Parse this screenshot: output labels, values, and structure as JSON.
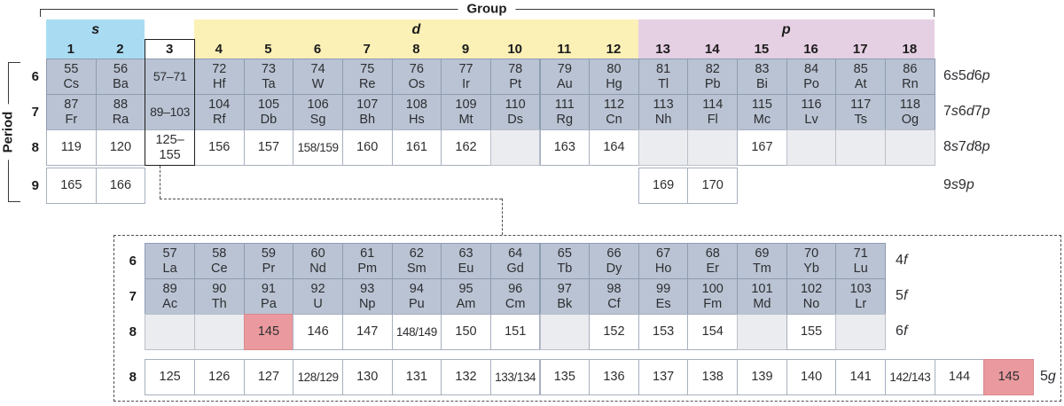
{
  "labels": {
    "group": "Group",
    "period": "Period"
  },
  "blocks": {
    "s": "s",
    "d": "d",
    "p": "p"
  },
  "group_numbers": [
    "1",
    "2",
    "3",
    "4",
    "5",
    "6",
    "7",
    "8",
    "9",
    "10",
    "11",
    "12",
    "13",
    "14",
    "15",
    "16",
    "17",
    "18"
  ],
  "colors": {
    "s_block": "#a9dcf3",
    "d_block": "#fbf0b6",
    "p_block": "#e5cfe3",
    "known_cell": "#b9c3d3",
    "predicted_cell": "#ffffff",
    "empty_cell": "#ebecef",
    "highlight_cell": "#ea9a9e"
  },
  "main_table": {
    "rows": [
      {
        "period": "6",
        "orbitals": "6s5d6p",
        "cells": [
          {
            "n": "55",
            "s": "Cs",
            "t": "known"
          },
          {
            "n": "56",
            "s": "Ba",
            "t": "known"
          },
          {
            "n": "57–71",
            "t": "range"
          },
          {
            "n": "72",
            "s": "Hf",
            "t": "known"
          },
          {
            "n": "73",
            "s": "Ta",
            "t": "known"
          },
          {
            "n": "74",
            "s": "W",
            "t": "known"
          },
          {
            "n": "75",
            "s": "Re",
            "t": "known"
          },
          {
            "n": "76",
            "s": "Os",
            "t": "known"
          },
          {
            "n": "77",
            "s": "Ir",
            "t": "known"
          },
          {
            "n": "78",
            "s": "Pt",
            "t": "known"
          },
          {
            "n": "79",
            "s": "Au",
            "t": "known"
          },
          {
            "n": "80",
            "s": "Hg",
            "t": "known"
          },
          {
            "n": "81",
            "s": "Tl",
            "t": "known"
          },
          {
            "n": "82",
            "s": "Pb",
            "t": "known"
          },
          {
            "n": "83",
            "s": "Bi",
            "t": "known"
          },
          {
            "n": "84",
            "s": "Po",
            "t": "known"
          },
          {
            "n": "85",
            "s": "At",
            "t": "known"
          },
          {
            "n": "86",
            "s": "Rn",
            "t": "known"
          }
        ]
      },
      {
        "period": "7",
        "orbitals": "7s6d7p",
        "cells": [
          {
            "n": "87",
            "s": "Fr",
            "t": "known"
          },
          {
            "n": "88",
            "s": "Ra",
            "t": "known"
          },
          {
            "n": "89–103",
            "t": "range"
          },
          {
            "n": "104",
            "s": "Rf",
            "t": "known"
          },
          {
            "n": "105",
            "s": "Db",
            "t": "known"
          },
          {
            "n": "106",
            "s": "Sg",
            "t": "known"
          },
          {
            "n": "107",
            "s": "Bh",
            "t": "known"
          },
          {
            "n": "108",
            "s": "Hs",
            "t": "known"
          },
          {
            "n": "109",
            "s": "Mt",
            "t": "known"
          },
          {
            "n": "110",
            "s": "Ds",
            "t": "known"
          },
          {
            "n": "111",
            "s": "Rg",
            "t": "known"
          },
          {
            "n": "112",
            "s": "Cn",
            "t": "known"
          },
          {
            "n": "113",
            "s": "Nh",
            "t": "known"
          },
          {
            "n": "114",
            "s": "Fl",
            "t": "known"
          },
          {
            "n": "115",
            "s": "Mc",
            "t": "known"
          },
          {
            "n": "116",
            "s": "Lv",
            "t": "known"
          },
          {
            "n": "117",
            "s": "Ts",
            "t": "known"
          },
          {
            "n": "118",
            "s": "Og",
            "t": "known"
          }
        ]
      },
      {
        "period": "8",
        "orbitals": "8s7d8p",
        "cells": [
          {
            "n": "119",
            "t": "pred"
          },
          {
            "n": "120",
            "t": "pred"
          },
          {
            "n": "125–155",
            "t": "pred"
          },
          {
            "n": "156",
            "t": "pred"
          },
          {
            "n": "157",
            "t": "pred"
          },
          {
            "n": "158/159",
            "t": "pred"
          },
          {
            "n": "160",
            "t": "pred"
          },
          {
            "n": "161",
            "t": "pred"
          },
          {
            "n": "162",
            "t": "pred"
          },
          {
            "t": "empty"
          },
          {
            "n": "163",
            "t": "pred"
          },
          {
            "n": "164",
            "t": "pred"
          },
          {
            "t": "empty"
          },
          {
            "t": "empty"
          },
          {
            "n": "167",
            "t": "pred"
          },
          {
            "t": "empty"
          },
          {
            "t": "empty"
          },
          {
            "t": "empty"
          }
        ]
      },
      {
        "period": "9",
        "orbitals": "9s9p",
        "cells": [
          {
            "n": "165",
            "t": "pred"
          },
          {
            "n": "166",
            "t": "pred"
          },
          null,
          null,
          null,
          null,
          null,
          null,
          null,
          null,
          null,
          null,
          {
            "n": "169",
            "t": "pred"
          },
          {
            "n": "170",
            "t": "pred"
          },
          null,
          null,
          null,
          null
        ]
      }
    ]
  },
  "f_table": {
    "rows": [
      {
        "period": "6",
        "orbitals": "4f",
        "cells": [
          {
            "n": "57",
            "s": "La",
            "t": "known"
          },
          {
            "n": "58",
            "s": "Ce",
            "t": "known"
          },
          {
            "n": "59",
            "s": "Pr",
            "t": "known"
          },
          {
            "n": "60",
            "s": "Nd",
            "t": "known"
          },
          {
            "n": "61",
            "s": "Pm",
            "t": "known"
          },
          {
            "n": "62",
            "s": "Sm",
            "t": "known"
          },
          {
            "n": "63",
            "s": "Eu",
            "t": "known"
          },
          {
            "n": "64",
            "s": "Gd",
            "t": "known"
          },
          {
            "n": "65",
            "s": "Tb",
            "t": "known"
          },
          {
            "n": "66",
            "s": "Dy",
            "t": "known"
          },
          {
            "n": "67",
            "s": "Ho",
            "t": "known"
          },
          {
            "n": "68",
            "s": "Er",
            "t": "known"
          },
          {
            "n": "69",
            "s": "Tm",
            "t": "known"
          },
          {
            "n": "70",
            "s": "Yb",
            "t": "known"
          },
          {
            "n": "71",
            "s": "Lu",
            "t": "known"
          }
        ]
      },
      {
        "period": "7",
        "orbitals": "5f",
        "cells": [
          {
            "n": "89",
            "s": "Ac",
            "t": "known"
          },
          {
            "n": "90",
            "s": "Th",
            "t": "known"
          },
          {
            "n": "91",
            "s": "Pa",
            "t": "known"
          },
          {
            "n": "92",
            "s": "U",
            "t": "known"
          },
          {
            "n": "93",
            "s": "Np",
            "t": "known"
          },
          {
            "n": "94",
            "s": "Pu",
            "t": "known"
          },
          {
            "n": "95",
            "s": "Am",
            "t": "known"
          },
          {
            "n": "96",
            "s": "Cm",
            "t": "known"
          },
          {
            "n": "97",
            "s": "Bk",
            "t": "known"
          },
          {
            "n": "98",
            "s": "Cf",
            "t": "known"
          },
          {
            "n": "99",
            "s": "Es",
            "t": "known"
          },
          {
            "n": "100",
            "s": "Fm",
            "t": "known"
          },
          {
            "n": "101",
            "s": "Md",
            "t": "known"
          },
          {
            "n": "102",
            "s": "No",
            "t": "known"
          },
          {
            "n": "103",
            "s": "Lr",
            "t": "known"
          }
        ]
      },
      {
        "period": "8",
        "orbitals": "6f",
        "cells": [
          {
            "t": "empty"
          },
          {
            "t": "empty"
          },
          {
            "n": "145",
            "t": "hl"
          },
          {
            "n": "146",
            "t": "pred"
          },
          {
            "n": "147",
            "t": "pred"
          },
          {
            "n": "148/149",
            "t": "pred"
          },
          {
            "n": "150",
            "t": "pred"
          },
          {
            "n": "151",
            "t": "pred"
          },
          {
            "t": "empty"
          },
          {
            "n": "152",
            "t": "pred"
          },
          {
            "n": "153",
            "t": "pred"
          },
          {
            "n": "154",
            "t": "pred"
          },
          {
            "t": "empty"
          },
          {
            "n": "155",
            "t": "pred"
          },
          {
            "t": "empty"
          }
        ]
      }
    ],
    "g_row": {
      "period": "8",
      "orbitals": "5g",
      "cells": [
        {
          "n": "125",
          "t": "pred"
        },
        {
          "n": "126",
          "t": "pred"
        },
        {
          "n": "127",
          "t": "pred"
        },
        {
          "n": "128/129",
          "t": "pred"
        },
        {
          "n": "130",
          "t": "pred"
        },
        {
          "n": "131",
          "t": "pred"
        },
        {
          "n": "132",
          "t": "pred"
        },
        {
          "n": "133/134",
          "t": "pred"
        },
        {
          "n": "135",
          "t": "pred"
        },
        {
          "n": "136",
          "t": "pred"
        },
        {
          "n": "137",
          "t": "pred"
        },
        {
          "n": "138",
          "t": "pred"
        },
        {
          "n": "139",
          "t": "pred"
        },
        {
          "n": "140",
          "t": "pred"
        },
        {
          "n": "141",
          "t": "pred"
        },
        {
          "n": "142/143",
          "t": "pred"
        },
        {
          "n": "144",
          "t": "pred"
        },
        {
          "n": "145",
          "t": "hl"
        }
      ]
    }
  }
}
